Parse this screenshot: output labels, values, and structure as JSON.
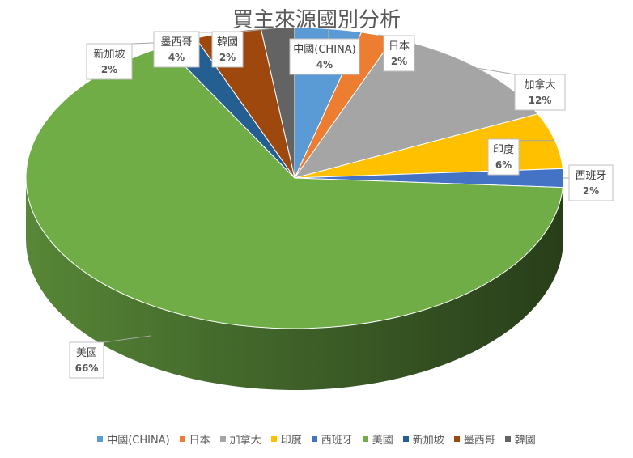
{
  "chart_data": {
    "type": "pie",
    "title": "買主來源國別分析",
    "categories": [
      "中國(CHINA)",
      "日本",
      "加拿大",
      "印度",
      "西班牙",
      "美國",
      "新加坡",
      "墨西哥",
      "韓國"
    ],
    "values": [
      4,
      2,
      12,
      6,
      2,
      66,
      2,
      4,
      2
    ],
    "value_labels": [
      "4%",
      "2%",
      "12%",
      "6%",
      "2%",
      "66%",
      "2%",
      "4%",
      "2%"
    ],
    "colors": [
      "#5B9BD5",
      "#ED7D31",
      "#A5A5A5",
      "#FFC000",
      "#4472C4",
      "#70AD47",
      "#255E91",
      "#9E480E",
      "#636363"
    ],
    "legend_position": "bottom",
    "style": "3d-exploded-none"
  }
}
